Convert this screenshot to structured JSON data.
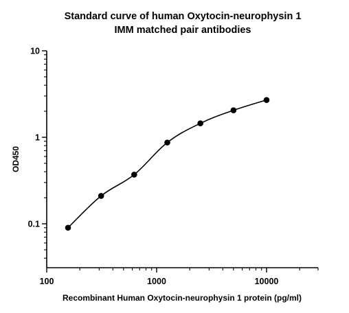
{
  "chart_data": {
    "type": "scatter",
    "title": [
      "Standard curve of human Oxytocin-neurophysin 1",
      "IMM matched pair antibodies"
    ],
    "xlabel": "Recombinant Human Oxytocin-neurophysin 1 protein (pg/ml)",
    "ylabel": "OD450",
    "xscale": "log",
    "yscale": "log",
    "xlim": [
      100,
      30000
    ],
    "ylim": [
      0.03,
      10
    ],
    "xticks": [
      100,
      1000,
      10000
    ],
    "xtick_labels": [
      "100",
      "1000",
      "10000"
    ],
    "yticks": [
      0.1,
      1,
      10
    ],
    "ytick_labels": [
      "0.1",
      "1",
      "10"
    ],
    "grid": false,
    "legend": "none",
    "series": [
      {
        "x": [
          156.25,
          312.5,
          625,
          1250,
          2500,
          5000,
          10000
        ],
        "y": [
          0.09,
          0.21,
          0.37,
          0.87,
          1.45,
          2.05,
          2.7
        ]
      }
    ],
    "fit_curve": "4-parameter logistic"
  }
}
